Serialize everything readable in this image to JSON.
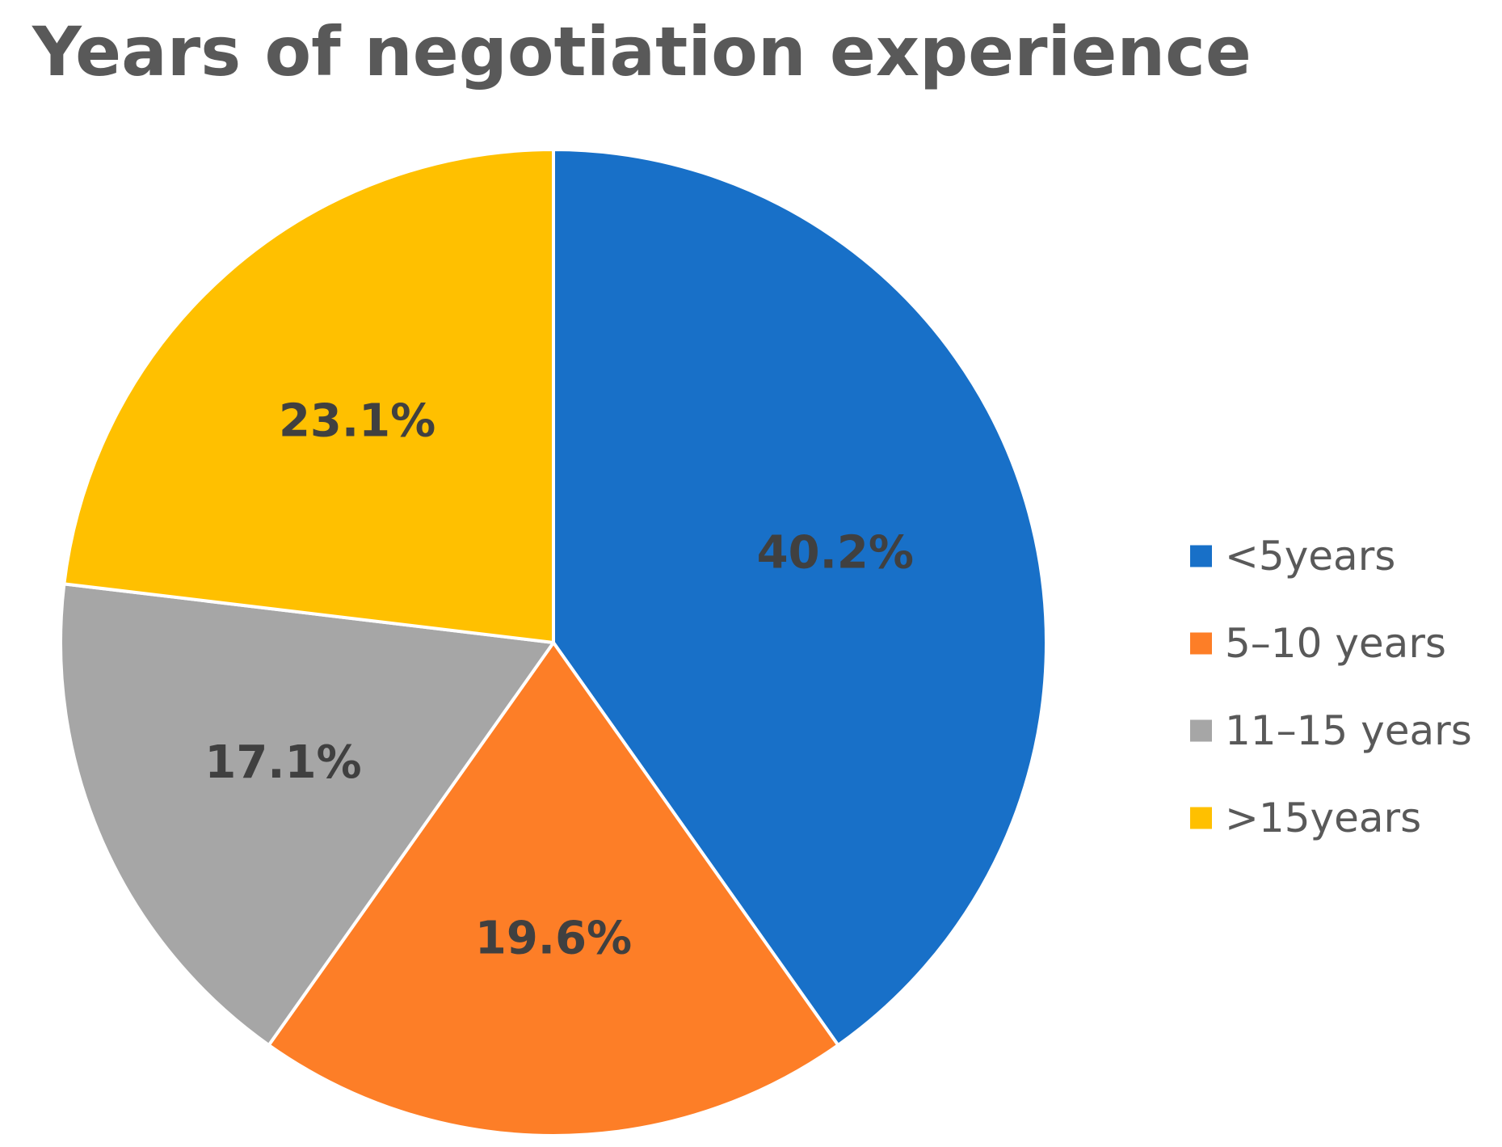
{
  "chart_data": {
    "type": "pie",
    "title": "Years of negotiation experience",
    "categories": [
      "<5years",
      "5–10 years",
      "11–15 years",
      ">15years"
    ],
    "values": [
      40.2,
      19.6,
      17.1,
      23.1
    ],
    "data_labels": [
      "40.2%",
      "19.6%",
      "17.1%",
      "23.1%"
    ],
    "colors": [
      "#1870C8",
      "#FD7E27",
      "#A6A6A6",
      "#FFC000"
    ],
    "start_angle_deg": 0,
    "direction": "clockwise",
    "legend": "right"
  }
}
